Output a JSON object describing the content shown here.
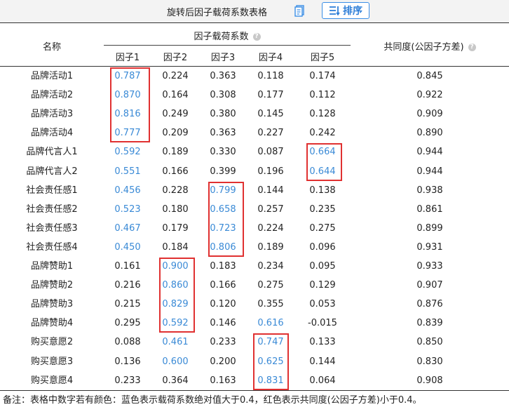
{
  "header": {
    "title": "旋转后因子载荷系数表格",
    "sort_label": "排序",
    "copy_icon": "copy-icon",
    "sort_icon": "sort-lines-icon"
  },
  "table": {
    "col_name": "名称",
    "col_group": "因子载荷系数",
    "col_commonality": "共同度(公因子方差)",
    "factors": [
      "因子1",
      "因子2",
      "因子3",
      "因子4",
      "因子5"
    ],
    "rows": [
      {
        "name": "品牌活动1",
        "values": [
          "0.787",
          "0.224",
          "0.363",
          "0.118",
          "0.174"
        ],
        "commonality": "0.845"
      },
      {
        "name": "品牌活动2",
        "values": [
          "0.870",
          "0.164",
          "0.308",
          "0.177",
          "0.112"
        ],
        "commonality": "0.922"
      },
      {
        "name": "品牌活动3",
        "values": [
          "0.816",
          "0.249",
          "0.380",
          "0.145",
          "0.128"
        ],
        "commonality": "0.909"
      },
      {
        "name": "品牌活动4",
        "values": [
          "0.777",
          "0.209",
          "0.363",
          "0.227",
          "0.242"
        ],
        "commonality": "0.890"
      },
      {
        "name": "品牌代言人1",
        "values": [
          "0.592",
          "0.189",
          "0.330",
          "0.087",
          "0.664"
        ],
        "commonality": "0.944"
      },
      {
        "name": "品牌代言人2",
        "values": [
          "0.551",
          "0.166",
          "0.399",
          "0.196",
          "0.644"
        ],
        "commonality": "0.944"
      },
      {
        "name": "社会责任感1",
        "values": [
          "0.456",
          "0.228",
          "0.799",
          "0.144",
          "0.138"
        ],
        "commonality": "0.938"
      },
      {
        "name": "社会责任感2",
        "values": [
          "0.523",
          "0.180",
          "0.658",
          "0.257",
          "0.235"
        ],
        "commonality": "0.861"
      },
      {
        "name": "社会责任感3",
        "values": [
          "0.467",
          "0.179",
          "0.723",
          "0.224",
          "0.275"
        ],
        "commonality": "0.899"
      },
      {
        "name": "社会责任感4",
        "values": [
          "0.450",
          "0.184",
          "0.806",
          "0.189",
          "0.096"
        ],
        "commonality": "0.931"
      },
      {
        "name": "品牌赞助1",
        "values": [
          "0.161",
          "0.900",
          "0.183",
          "0.234",
          "0.095"
        ],
        "commonality": "0.933"
      },
      {
        "name": "品牌赞助2",
        "values": [
          "0.216",
          "0.860",
          "0.166",
          "0.275",
          "0.129"
        ],
        "commonality": "0.907"
      },
      {
        "name": "品牌赞助3",
        "values": [
          "0.215",
          "0.829",
          "0.120",
          "0.355",
          "0.053"
        ],
        "commonality": "0.876"
      },
      {
        "name": "品牌赞助4",
        "values": [
          "0.295",
          "0.592",
          "0.146",
          "0.616",
          "-0.015"
        ],
        "commonality": "0.839"
      },
      {
        "name": "购买意愿2",
        "values": [
          "0.088",
          "0.461",
          "0.233",
          "0.747",
          "0.133"
        ],
        "commonality": "0.850"
      },
      {
        "name": "购买意愿3",
        "values": [
          "0.136",
          "0.600",
          "0.200",
          "0.625",
          "0.144"
        ],
        "commonality": "0.830"
      },
      {
        "name": "购买意愿4",
        "values": [
          "0.233",
          "0.364",
          "0.163",
          "0.831",
          "0.064"
        ],
        "commonality": "0.908"
      }
    ],
    "highlight_color": "#3a8ad6",
    "box_color": "#e03131",
    "boxes": [
      {
        "factor": 0,
        "from_row": 0,
        "to_row": 3
      },
      {
        "factor": 4,
        "from_row": 4,
        "to_row": 5
      },
      {
        "factor": 2,
        "from_row": 6,
        "to_row": 9
      },
      {
        "factor": 1,
        "from_row": 10,
        "to_row": 13
      },
      {
        "factor": 3,
        "from_row": 14,
        "to_row": 16
      }
    ]
  },
  "footnote": "备注：表格中数字若有颜色：蓝色表示载荷系数绝对值大于0.4，红色表示共同度(公因子方差)小于0.4。"
}
